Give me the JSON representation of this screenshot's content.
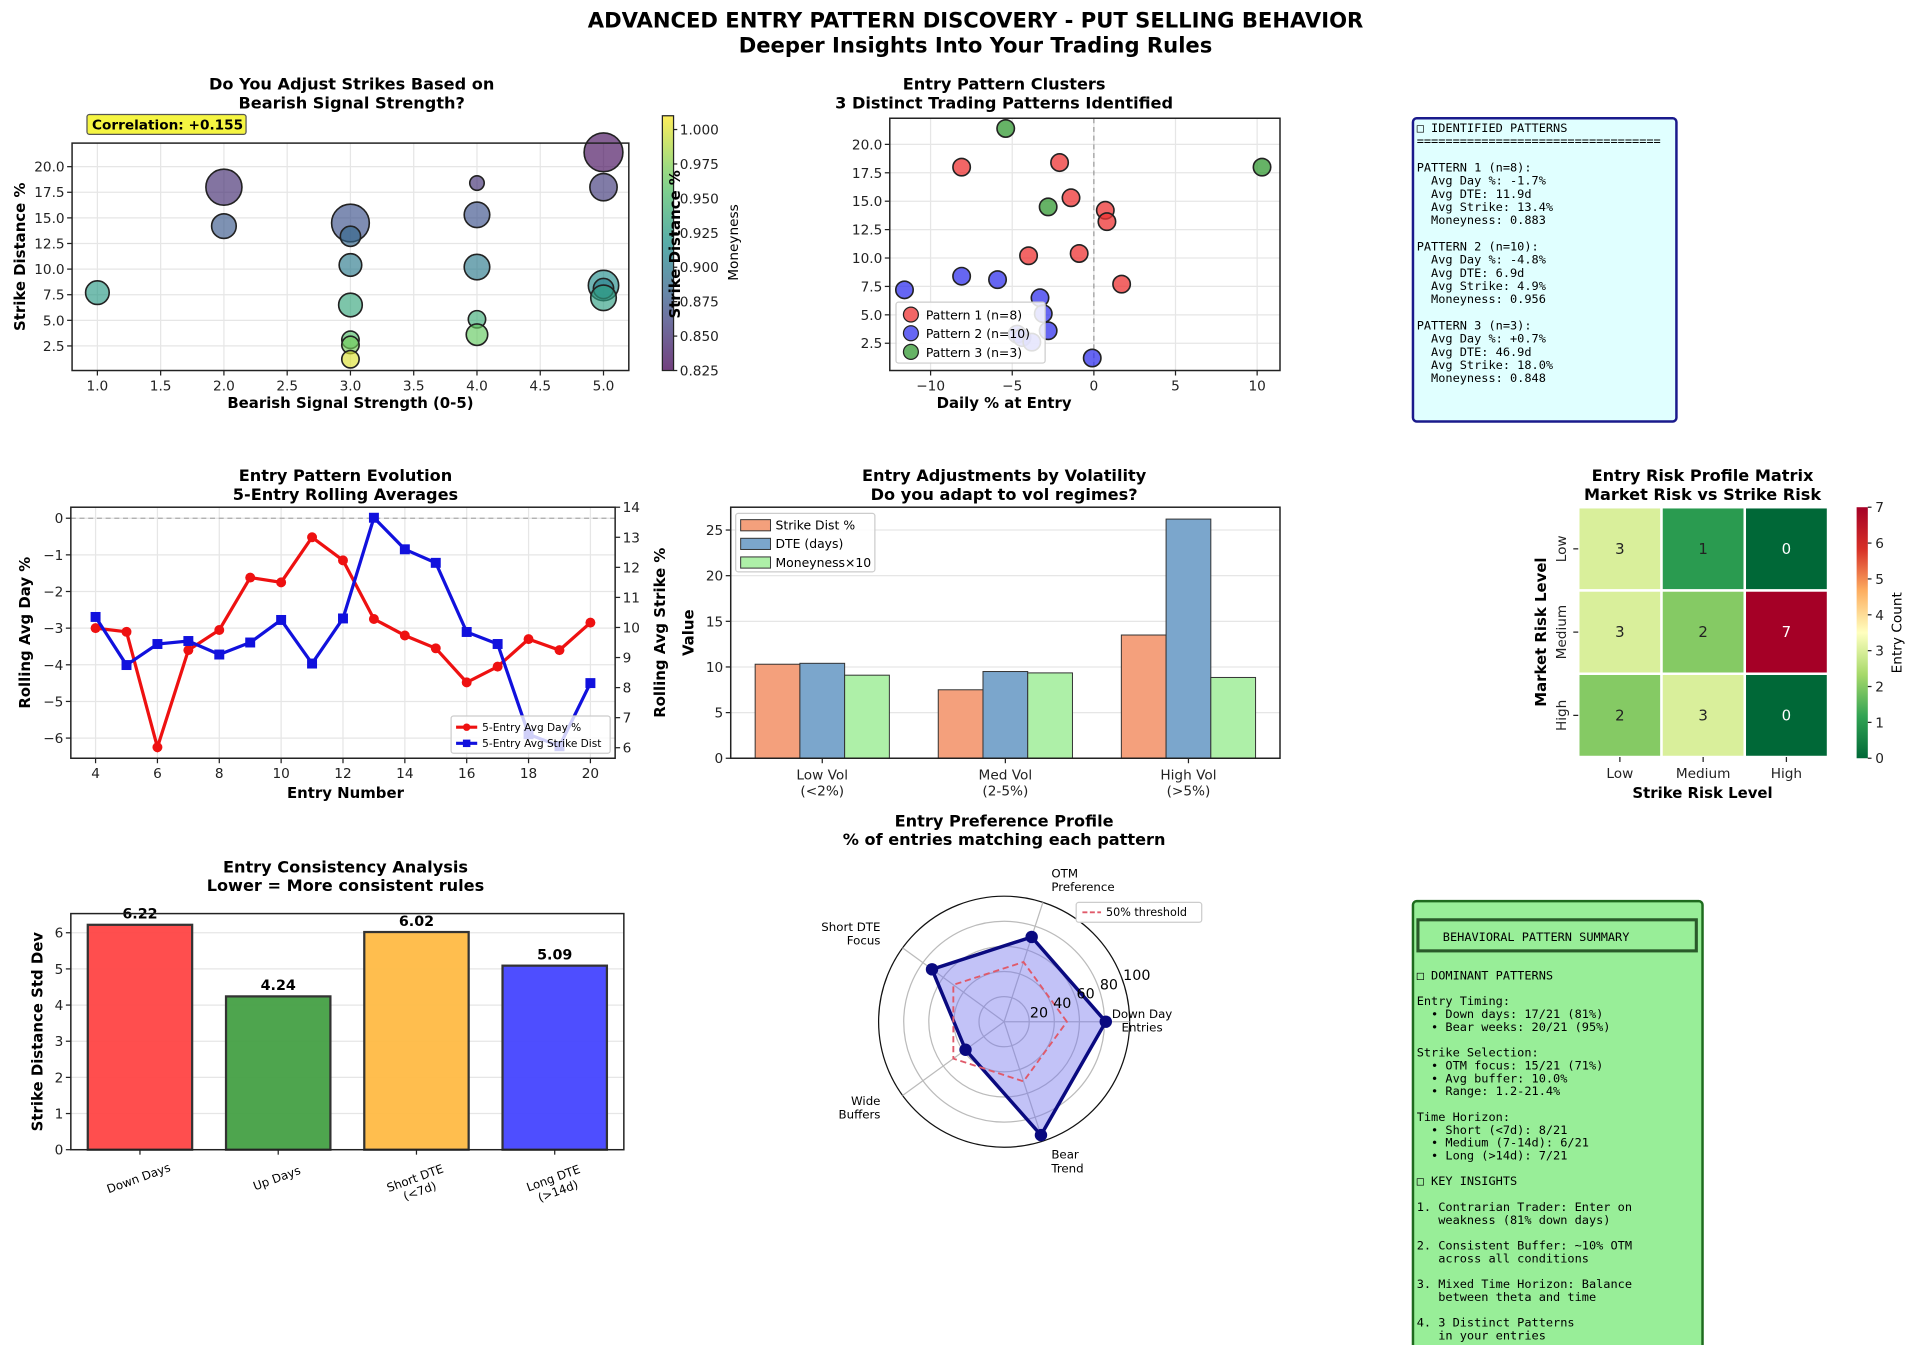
{
  "figure": {
    "title": "ADVANCED ENTRY PATTERN DISCOVERY - PUT SELLING BEHAVIOR",
    "subtitle": "Deeper Insights Into Your Trading Rules"
  },
  "chart_data": [
    {
      "id": "signal_scatter",
      "type": "scatter",
      "title": "Do You Adjust Strikes Based on\nBearish Signal Strength?",
      "title_lines": [
        "Do You Adjust Strikes Based on",
        "Bearish Signal Strength?"
      ],
      "xlabel": "Bearish Signal Strength (0-5)",
      "ylabel": "Strike Distance %",
      "xlim": [
        0.8,
        5.2
      ],
      "ylim": [
        0.1,
        22.3
      ],
      "xticks": [
        "1.0",
        "1.5",
        "2.0",
        "2.5",
        "3.0",
        "3.5",
        "4.0",
        "4.5",
        "5.0"
      ],
      "yticks": [
        "2.5",
        "5.0",
        "7.5",
        "10.0",
        "12.5",
        "15.0",
        "17.5",
        "20.0"
      ],
      "grid": true,
      "annotation": "Correlation: +0.155",
      "colorbar": {
        "label": "Moneyness",
        "range": [
          0.825,
          1.01
        ],
        "ticks": [
          "0.825",
          "0.850",
          "0.875",
          "0.900",
          "0.925",
          "0.950",
          "0.975",
          "1.000"
        ]
      },
      "points": [
        {
          "x": 1.0,
          "y": 7.7,
          "size": 8,
          "moneyness": 0.925
        },
        {
          "x": 2.0,
          "y": 18.0,
          "size": 25,
          "moneyness": 0.848
        },
        {
          "x": 2.0,
          "y": 14.2,
          "size": 9,
          "moneyness": 0.875
        },
        {
          "x": 3.0,
          "y": 14.5,
          "size": 28,
          "moneyness": 0.87
        },
        {
          "x": 3.0,
          "y": 13.2,
          "size": 5,
          "moneyness": 0.885
        },
        {
          "x": 3.0,
          "y": 10.4,
          "size": 7,
          "moneyness": 0.9
        },
        {
          "x": 3.0,
          "y": 6.5,
          "size": 8,
          "moneyness": 0.935
        },
        {
          "x": 3.0,
          "y": 3.1,
          "size": 3,
          "moneyness": 0.955
        },
        {
          "x": 3.0,
          "y": 2.6,
          "size": 3,
          "moneyness": 0.97
        },
        {
          "x": 3.0,
          "y": 1.2,
          "size": 3,
          "moneyness": 1.0
        },
        {
          "x": 4.0,
          "y": 18.4,
          "size": 1.5,
          "moneyness": 0.85
        },
        {
          "x": 4.0,
          "y": 15.3,
          "size": 10,
          "moneyness": 0.87
        },
        {
          "x": 4.0,
          "y": 10.2,
          "size": 10,
          "moneyness": 0.9
        },
        {
          "x": 4.0,
          "y": 5.1,
          "size": 3,
          "moneyness": 0.94
        },
        {
          "x": 4.0,
          "y": 3.6,
          "size": 6,
          "moneyness": 0.965
        },
        {
          "x": 5.0,
          "y": 21.4,
          "size": 30,
          "moneyness": 0.83
        },
        {
          "x": 5.0,
          "y": 18.0,
          "size": 12,
          "moneyness": 0.855
        },
        {
          "x": 5.0,
          "y": 8.4,
          "size": 16,
          "moneyness": 0.915
        },
        {
          "x": 5.0,
          "y": 8.1,
          "size": 5,
          "moneyness": 0.905
        },
        {
          "x": 5.0,
          "y": 7.2,
          "size": 10,
          "moneyness": 0.928
        }
      ]
    },
    {
      "id": "clusters",
      "type": "scatter",
      "title_lines": [
        "Entry Pattern Clusters",
        "3 Distinct Trading Patterns Identified"
      ],
      "xlabel": "Daily % at Entry",
      "ylabel": "Strike Distance %",
      "xlim": [
        -12.5,
        11.4
      ],
      "ylim": [
        0.1,
        22.3
      ],
      "xticks": [
        -10,
        -5,
        0,
        5,
        10
      ],
      "yticks": [
        "2.5",
        "5.0",
        "7.5",
        "10.0",
        "12.5",
        "15.0",
        "17.5",
        "20.0"
      ],
      "grid": true,
      "legend_position": "lower-left",
      "series": [
        {
          "name": "Pattern 1 (n=8)",
          "color": "#ee3333",
          "points": [
            [
              -8.1,
              18.0
            ],
            [
              -2.1,
              18.4
            ],
            [
              -1.4,
              15.3
            ],
            [
              0.7,
              14.2
            ],
            [
              0.8,
              13.2
            ],
            [
              -4.0,
              10.2
            ],
            [
              -0.9,
              10.4
            ],
            [
              1.7,
              7.7
            ]
          ]
        },
        {
          "name": "Pattern 2 (n=10)",
          "color": "#3333ee",
          "points": [
            [
              -11.6,
              7.2
            ],
            [
              -8.1,
              8.4
            ],
            [
              -5.9,
              8.1
            ],
            [
              -3.3,
              6.5
            ],
            [
              -3.1,
              5.1
            ],
            [
              -2.8,
              3.6
            ],
            [
              -4.7,
              3.3
            ],
            [
              -4.4,
              3.0
            ],
            [
              -3.8,
              2.6
            ],
            [
              -0.1,
              1.2
            ]
          ]
        },
        {
          "name": "Pattern 3 (n=3)",
          "color": "#339933",
          "points": [
            [
              -5.4,
              21.4
            ],
            [
              -2.8,
              14.5
            ],
            [
              10.3,
              18.0
            ]
          ]
        }
      ]
    },
    {
      "id": "rolling",
      "type": "line",
      "title_lines": [
        "Entry Pattern Evolution",
        "5-Entry Rolling Averages"
      ],
      "xlabel": "Entry Number",
      "ylabel": "Rolling Avg Day %",
      "ylabel_right": "Rolling Avg Strike %",
      "x": [
        4,
        5,
        6,
        7,
        8,
        9,
        10,
        11,
        12,
        13,
        14,
        15,
        16,
        17,
        18,
        19,
        20
      ],
      "xlim": [
        3.2,
        20.8
      ],
      "ylim": [
        -6.55,
        0.3
      ],
      "ylim_right": [
        5.65,
        14.0
      ],
      "xticks": [
        4,
        6,
        8,
        10,
        12,
        14,
        16,
        18,
        20
      ],
      "yticks": [
        0,
        -1,
        -2,
        -3,
        -4,
        -5,
        -6
      ],
      "yticks_right": [
        6,
        7,
        8,
        9,
        10,
        11,
        12,
        13,
        14
      ],
      "grid": true,
      "legend_position": "lower-right",
      "series": [
        {
          "name": "5-Entry Avg Day %",
          "axis": "left",
          "color": "#ee1111",
          "values": [
            -3.0,
            -3.1,
            -6.25,
            -3.6,
            -3.05,
            -1.62,
            -1.75,
            -0.52,
            -1.15,
            -2.75,
            -3.2,
            -3.55,
            -4.48,
            -4.05,
            -3.3,
            -3.6,
            -2.85
          ]
        },
        {
          "name": "5-Entry Avg Strike Dist",
          "axis": "right",
          "color": "#1111dd",
          "values": [
            10.35,
            8.75,
            9.45,
            9.55,
            9.1,
            9.5,
            10.25,
            8.8,
            10.3,
            13.65,
            12.6,
            12.15,
            9.85,
            9.45,
            6.45,
            6.05,
            8.15
          ]
        }
      ]
    },
    {
      "id": "vol_regimes",
      "type": "bar",
      "title_lines": [
        "Entry Adjustments by Volatility",
        "Do you adapt to vol regimes?"
      ],
      "xlabel": "",
      "ylabel": "Value",
      "categories": [
        "Low Vol\n(<2%)",
        "Med Vol\n(2-5%)",
        "High Vol\n(>5%)"
      ],
      "category_lines": [
        [
          "Low Vol",
          "(<2%)"
        ],
        [
          "Med Vol",
          "(2-5%)"
        ],
        [
          "High Vol",
          "(>5%)"
        ]
      ],
      "ylim": [
        0,
        27.5
      ],
      "yticks": [
        0,
        5,
        10,
        15,
        20,
        25
      ],
      "grid": true,
      "legend_position": "top-left",
      "series": [
        {
          "name": "Strike Dist %",
          "color": "#f4a07c",
          "values": [
            10.3,
            7.5,
            13.5
          ]
        },
        {
          "name": "DTE (days)",
          "color": "#7ba6cc",
          "values": [
            10.4,
            9.5,
            26.2
          ]
        },
        {
          "name": "Moneyness×10",
          "color": "#aef0a8",
          "values": [
            9.1,
            9.35,
            8.85
          ]
        }
      ]
    },
    {
      "id": "risk_matrix",
      "type": "heatmap",
      "title_lines": [
        "Entry Risk Profile Matrix",
        "Market Risk vs Strike Risk"
      ],
      "xlabel": "Strike Risk Level",
      "ylabel": "Market Risk Level",
      "x_categories": [
        "Low",
        "Medium",
        "High"
      ],
      "y_categories": [
        "Low",
        "Medium",
        "High"
      ],
      "values": [
        [
          3,
          1,
          0
        ],
        [
          3,
          2,
          7
        ],
        [
          2,
          3,
          0
        ]
      ],
      "colorbar": {
        "label": "Entry Count",
        "range": [
          0,
          7
        ],
        "ticks": [
          "0",
          "1",
          "2",
          "3",
          "4",
          "5",
          "6",
          "7"
        ]
      }
    },
    {
      "id": "consistency",
      "type": "bar",
      "title_lines": [
        "Entry Consistency Analysis",
        "Lower = More consistent rules"
      ],
      "xlabel": "",
      "ylabel": "Strike Distance Std Dev",
      "categories": [
        "Down Days",
        "Up Days",
        "Short DTE\n(<7d)",
        "Long DTE\n(>14d)"
      ],
      "category_lines": [
        [
          "Down Days"
        ],
        [
          "Up Days"
        ],
        [
          "Short DTE",
          "(<7d)"
        ],
        [
          "Long DTE",
          "(>14d)"
        ]
      ],
      "values": [
        6.22,
        4.24,
        6.02,
        5.09
      ],
      "value_labels": [
        "6.22",
        "4.24",
        "6.02",
        "5.09"
      ],
      "colors": [
        "#ff4444",
        "#44a044",
        "#ffbb44",
        "#4444ff"
      ],
      "ylim": [
        0,
        6.53
      ],
      "yticks": [
        0,
        1,
        2,
        3,
        4,
        5,
        6
      ],
      "grid": true
    },
    {
      "id": "preference_radar",
      "type": "radar",
      "title_lines": [
        "Entry Preference Profile",
        "% of entries matching each pattern"
      ],
      "axes": [
        "Down Day\nEntries",
        "OTM\nPreference",
        "Short DTE\nFocus",
        "Wide\nBuffers",
        "Bear\nTrend"
      ],
      "axis_lines": [
        [
          "Down Day",
          "Entries"
        ],
        [
          "OTM",
          "Preference"
        ],
        [
          "Short DTE",
          "Focus"
        ],
        [
          "Wide",
          "Buffers"
        ],
        [
          "Bear",
          "Trend"
        ]
      ],
      "values": [
        81,
        71,
        71,
        38,
        95
      ],
      "threshold": {
        "name": "50% threshold",
        "value": 50
      },
      "rlim": [
        0,
        100
      ],
      "rticks": [
        "20",
        "40",
        "60",
        "80",
        "100"
      ]
    }
  ],
  "patterns_box": {
    "lines": [
      "□ IDENTIFIED PATTERNS",
      "==================================",
      "",
      "PATTERN 1 (n=8):",
      "  Avg Day %: -1.7%",
      "  Avg DTE: 11.9d",
      "  Avg Strike: 13.4%",
      "  Moneyness: 0.883",
      "",
      "PATTERN 2 (n=10):",
      "  Avg Day %: -4.8%",
      "  Avg DTE: 6.9d",
      "  Avg Strike: 4.9%",
      "  Moneyness: 0.956",
      "",
      "PATTERN 3 (n=3):",
      "  Avg Day %: +0.7%",
      "  Avg DTE: 46.9d",
      "  Avg Strike: 18.0%",
      "  Moneyness: 0.848"
    ]
  },
  "summary_box": {
    "header": "BEHAVIORAL PATTERN SUMMARY",
    "lines": [
      "□ DOMINANT PATTERNS",
      "",
      "Entry Timing:",
      "  • Down days: 17/21 (81%)",
      "  • Bear weeks: 20/21 (95%)",
      "",
      "Strike Selection:",
      "  • OTM focus: 15/21 (71%)",
      "  • Avg buffer: 10.0%",
      "  • Range: 1.2-21.4%",
      "",
      "Time Horizon:",
      "  • Short (<7d): 8/21",
      "  • Medium (7-14d): 6/21",
      "  • Long (>14d): 7/21",
      "",
      "□ KEY INSIGHTS",
      "",
      "1. Contrarian Trader: Enter on",
      "   weakness (81% down days)",
      "",
      "2. Consistent Buffer: ~10% OTM",
      "   across all conditions",
      "",
      "3. Mixed Time Horizon: Balance",
      "   between theta and time",
      "",
      "4. 3 Distinct Patterns",
      "   in your entries"
    ]
  }
}
